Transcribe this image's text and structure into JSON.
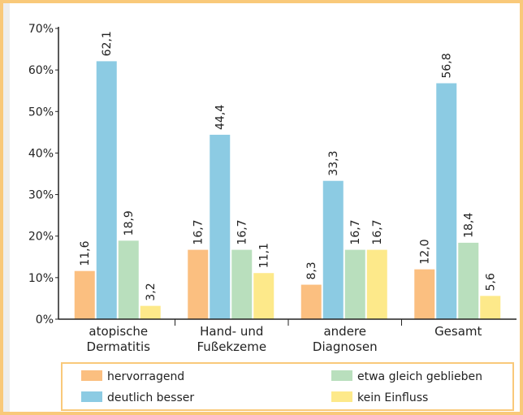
{
  "chart_data": {
    "type": "bar",
    "categories": [
      "atopische Dermatitis",
      "Hand- und Fußekzeme",
      "andere Diagnosen",
      "Gesamt"
    ],
    "series": [
      {
        "name": "hervorragend",
        "color": "#fbbf80",
        "values": [
          11.6,
          16.7,
          8.3,
          12.0
        ],
        "value_labels": [
          "11,6",
          "16,7",
          "8,3",
          "12,0"
        ]
      },
      {
        "name": "deutlich besser",
        "color": "#8ccbe3",
        "values": [
          62.1,
          44.4,
          33.3,
          56.8
        ],
        "value_labels": [
          "62,1",
          "44,4",
          "33,3",
          "56,8"
        ]
      },
      {
        "name": "etwa gleich geblieben",
        "color": "#b9dfbd",
        "values": [
          18.9,
          16.7,
          16.7,
          18.4
        ],
        "value_labels": [
          "18,9",
          "16,7",
          "16,7",
          "18,4"
        ]
      },
      {
        "name": "kein Einfluss",
        "color": "#fde98a",
        "values": [
          3.2,
          11.1,
          16.7,
          5.6
        ],
        "value_labels": [
          "3,2",
          "11,1",
          "16,7",
          "5,6"
        ]
      }
    ],
    "ylim": [
      0,
      70
    ],
    "yticks": [
      {
        "value": 0,
        "label": "0%"
      },
      {
        "value": 10,
        "label": "10%"
      },
      {
        "value": 20,
        "label": "20%"
      },
      {
        "value": 30,
        "label": "30%"
      },
      {
        "value": 40,
        "label": "40%"
      },
      {
        "value": 50,
        "label": "50%"
      },
      {
        "value": 60,
        "label": "60%"
      },
      {
        "value": 70,
        "label": "70%"
      }
    ]
  }
}
